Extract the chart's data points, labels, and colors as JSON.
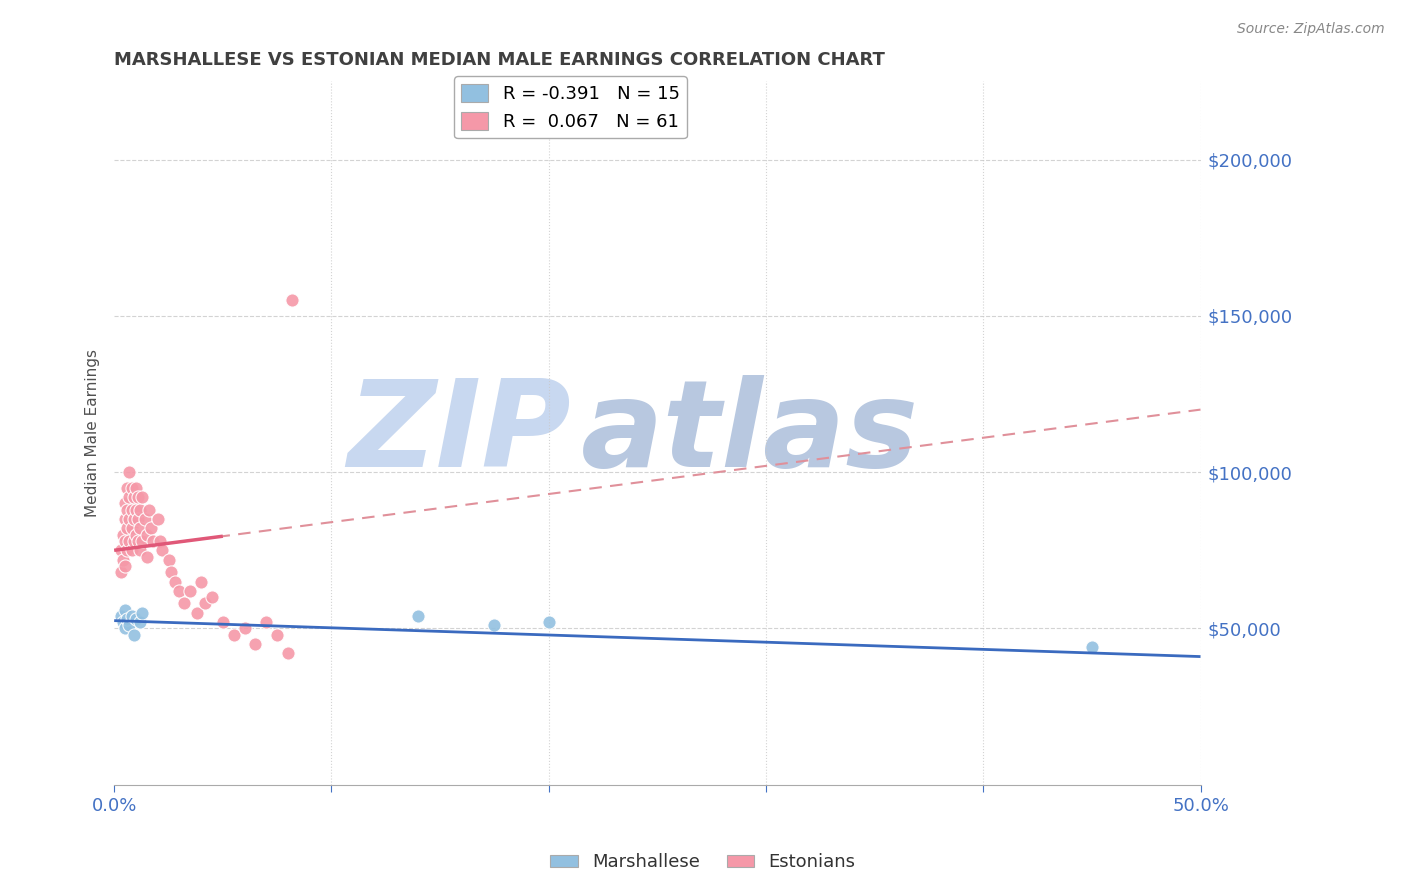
{
  "title": "MARSHALLESE VS ESTONIAN MEDIAN MALE EARNINGS CORRELATION CHART",
  "source": "Source: ZipAtlas.com",
  "xlabel": "",
  "ylabel": "Median Male Earnings",
  "xlim": [
    0.0,
    0.5
  ],
  "ylim": [
    0,
    225000
  ],
  "yticks": [
    50000,
    100000,
    150000,
    200000
  ],
  "ytick_labels": [
    "$50,000",
    "$100,000",
    "$150,000",
    "$200,000"
  ],
  "xticks": [
    0.0,
    0.1,
    0.2,
    0.3,
    0.4,
    0.5
  ],
  "xtick_labels": [
    "0.0%",
    "",
    "",
    "",
    "",
    "50.0%"
  ],
  "marshallese_color": "#92c0e0",
  "estonian_color": "#f598a8",
  "trend_marshallese_color": "#3a6abf",
  "trend_estonian_solid_color": "#e05878",
  "trend_estonian_dashed_color": "#e0909a",
  "background_color": "#ffffff",
  "grid_color": "#c8c8c8",
  "title_color": "#404040",
  "axis_label_color": "#505050",
  "ytick_color": "#4472c4",
  "xtick_color": "#4472c4",
  "legend_R_marshallese": "R = -0.391",
  "legend_N_marshallese": "N = 15",
  "legend_R_estonian": "R =  0.067",
  "legend_N_estonian": "N = 61",
  "marshallese_x": [
    0.003,
    0.004,
    0.005,
    0.005,
    0.006,
    0.007,
    0.008,
    0.009,
    0.01,
    0.012,
    0.013,
    0.14,
    0.175,
    0.2,
    0.45
  ],
  "marshallese_y": [
    54000,
    52000,
    56000,
    50000,
    53000,
    51000,
    54000,
    48000,
    53000,
    52000,
    55000,
    54000,
    51000,
    52000,
    44000
  ],
  "estonian_x": [
    0.003,
    0.003,
    0.004,
    0.004,
    0.005,
    0.005,
    0.005,
    0.005,
    0.006,
    0.006,
    0.006,
    0.006,
    0.007,
    0.007,
    0.007,
    0.007,
    0.008,
    0.008,
    0.008,
    0.008,
    0.009,
    0.009,
    0.009,
    0.01,
    0.01,
    0.01,
    0.011,
    0.011,
    0.011,
    0.012,
    0.012,
    0.012,
    0.013,
    0.013,
    0.014,
    0.015,
    0.015,
    0.016,
    0.017,
    0.018,
    0.02,
    0.021,
    0.022,
    0.025,
    0.026,
    0.028,
    0.03,
    0.032,
    0.035,
    0.038,
    0.04,
    0.042,
    0.045,
    0.05,
    0.055,
    0.06,
    0.065,
    0.07,
    0.075,
    0.08,
    0.082
  ],
  "estonian_y": [
    75000,
    68000,
    80000,
    72000,
    90000,
    85000,
    78000,
    70000,
    95000,
    88000,
    82000,
    75000,
    100000,
    92000,
    85000,
    78000,
    95000,
    88000,
    82000,
    75000,
    92000,
    85000,
    78000,
    95000,
    88000,
    80000,
    92000,
    85000,
    78000,
    88000,
    82000,
    75000,
    92000,
    78000,
    85000,
    80000,
    73000,
    88000,
    82000,
    78000,
    85000,
    78000,
    75000,
    72000,
    68000,
    65000,
    62000,
    58000,
    62000,
    55000,
    65000,
    58000,
    60000,
    52000,
    48000,
    50000,
    45000,
    52000,
    48000,
    42000,
    155000
  ],
  "watermark_line1": "ZIP",
  "watermark_line2": "atlas",
  "watermark_color1": "#c8d8f0",
  "watermark_color2": "#b8c8e0"
}
